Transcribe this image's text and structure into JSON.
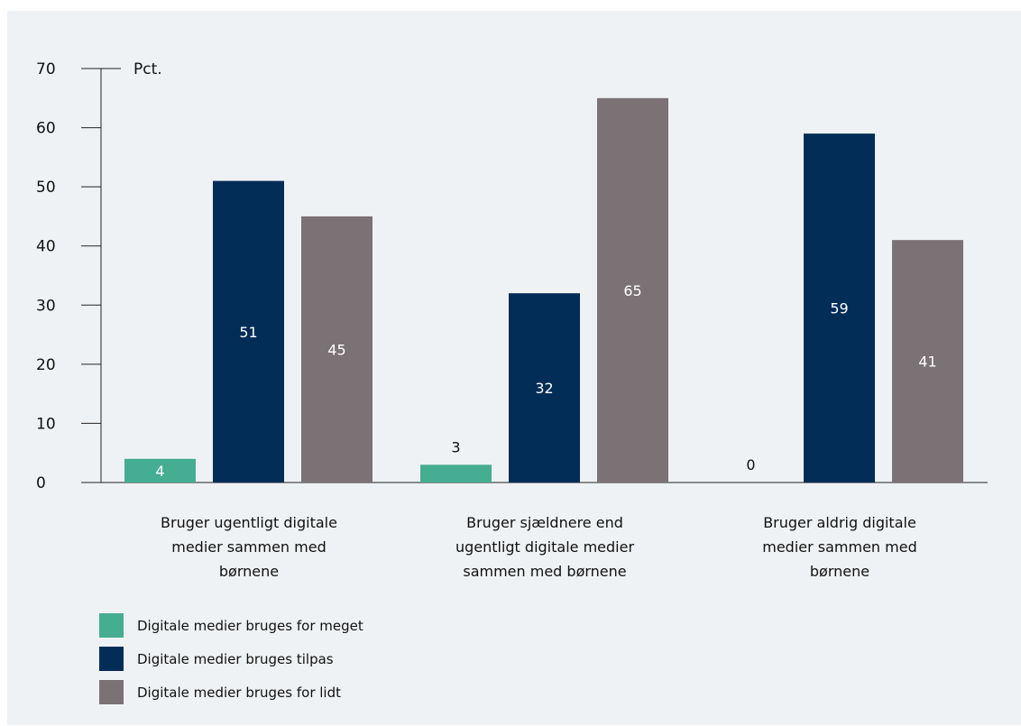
{
  "chart_data": {
    "type": "bar",
    "unit_label": "Pct.",
    "categories": [
      [
        "Bruger ugentligt digitale",
        "medier sammen med",
        "børnene"
      ],
      [
        "Bruger sjældnere end",
        "ugentligt digitale medier",
        "sammen med børnene"
      ],
      [
        "Bruger aldrig digitale",
        "medier sammen med",
        "børnene"
      ]
    ],
    "series": [
      {
        "name": "Digitale medier bruges for meget",
        "color": "#45ad91",
        "values": [
          4,
          3,
          0
        ]
      },
      {
        "name": "Digitale medier bruges tilpas",
        "color": "#022d57",
        "values": [
          51,
          32,
          59
        ]
      },
      {
        "name": "Digitale medier bruges for lidt",
        "color": "#7a7275",
        "values": [
          45,
          65,
          41
        ]
      }
    ],
    "ylim": [
      0,
      70
    ],
    "yticks": [
      0,
      10,
      20,
      30,
      40,
      50,
      60,
      70
    ],
    "grid": false,
    "legend_position": "bottom-left",
    "label_colors": {
      "inside": "#ffffff",
      "outside": "#111111"
    }
  }
}
